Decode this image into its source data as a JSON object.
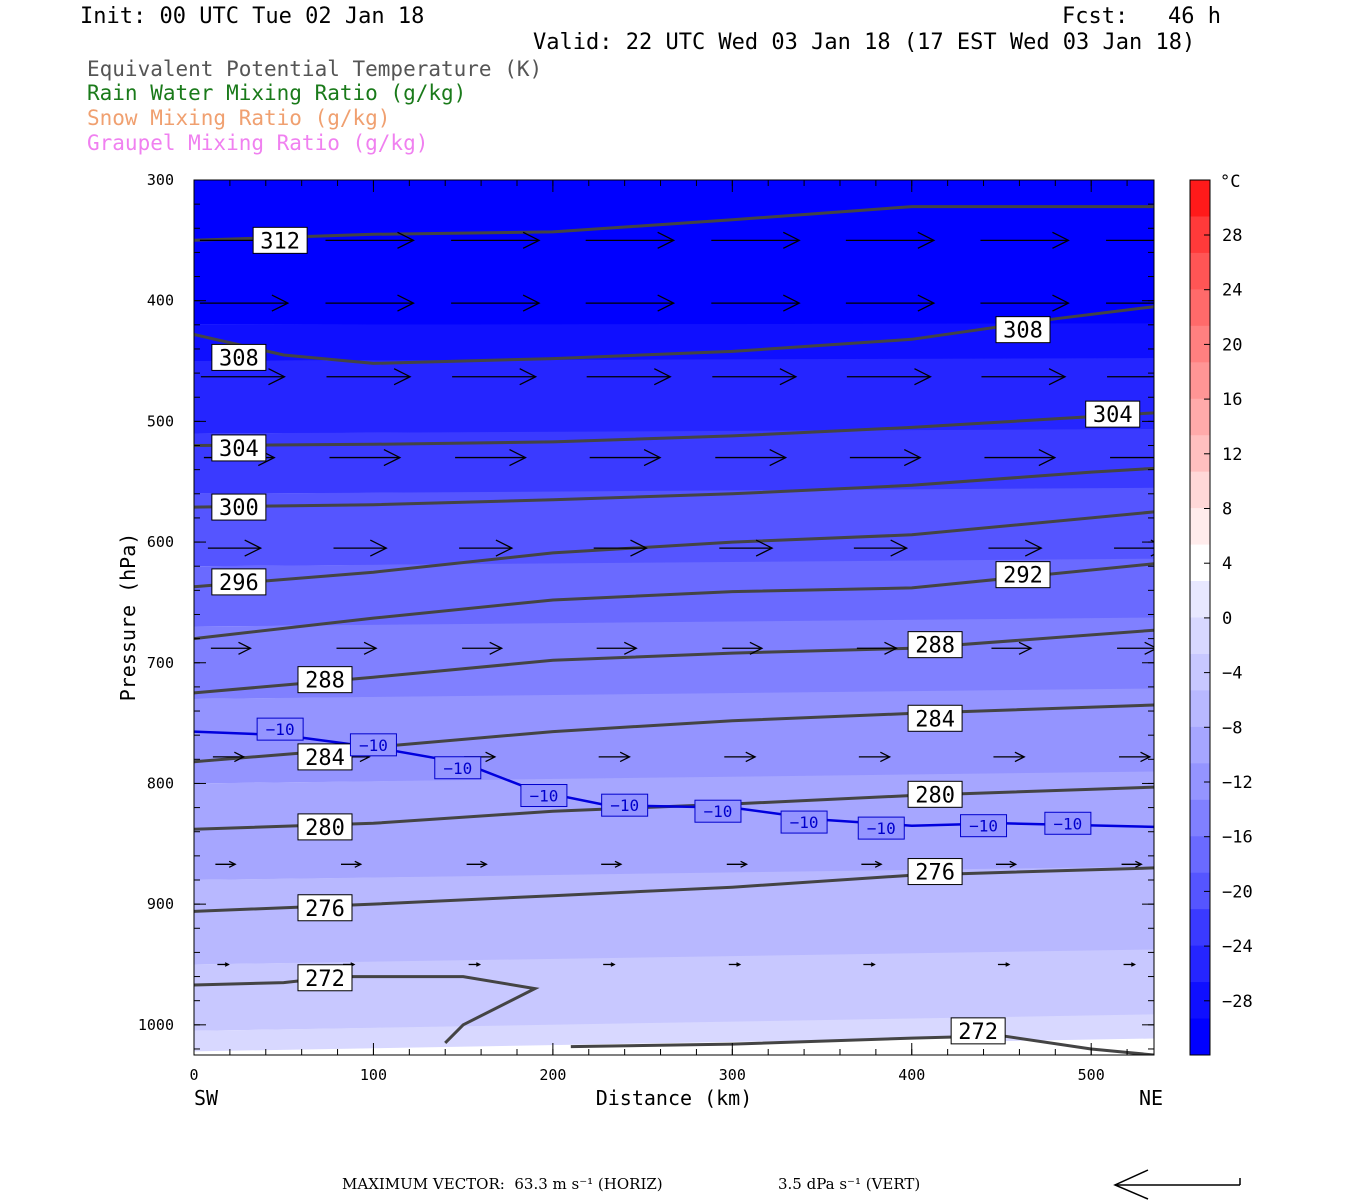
{
  "header": {
    "init": "Init: 00 UTC Tue 02 Jan 18",
    "fcst_label": "Fcst:",
    "fcst_value": "46 h",
    "valid": "Valid: 22 UTC Wed 03 Jan 18 (17 EST Wed 03 Jan 18)"
  },
  "legend": [
    {
      "text": "Equivalent Potential Temperature (K)",
      "color": "#555555"
    },
    {
      "text": "Rain Water Mixing Ratio (g/kg)",
      "color": "#1a7a1a"
    },
    {
      "text": "Snow Mixing Ratio (g/kg)",
      "color": "#f0a070"
    },
    {
      "text": "Graupel Mixing Ratio (g/kg)",
      "color": "#f080f0"
    }
  ],
  "chart_data": {
    "type": "contour_cross_section",
    "xlabel": "Distance (km)",
    "ylabel": "Pressure (hPa)",
    "xlim": [
      0,
      535
    ],
    "ylim": [
      1025,
      300
    ],
    "x_ticks": [
      "0",
      "100",
      "200",
      "300",
      "400",
      "500"
    ],
    "y_ticks": [
      "300",
      "400",
      "500",
      "600",
      "700",
      "800",
      "900",
      "1000"
    ],
    "left_end": "SW",
    "right_end": "NE",
    "colorbar": {
      "unit": "°C",
      "labels": [
        "28",
        "24",
        "20",
        "16",
        "12",
        "8",
        "4",
        "0",
        "−4",
        "−8",
        "−12",
        "−16",
        "−20",
        "−24",
        "−28"
      ],
      "colors": [
        "#ff1a1a",
        "#ff3a3a",
        "#ff5555",
        "#ff6a6a",
        "#ff8080",
        "#ff9595",
        "#ffaaaa",
        "#ffbfbf",
        "#ffd8d8",
        "#ffecec",
        "#ffffff",
        "#e8e8ff",
        "#d8d8ff",
        "#c8c8ff",
        "#b8b8ff",
        "#a6a6ff",
        "#9494ff",
        "#8080ff",
        "#6a6aff",
        "#5555ff",
        "#3a3aff",
        "#2525ff",
        "#0f0fff",
        "#0000ff"
      ]
    },
    "theta_e_contours": [
      {
        "value": 312,
        "label": "312",
        "points": [
          [
            0,
            350
          ],
          [
            100,
            345
          ],
          [
            200,
            343
          ],
          [
            300,
            333
          ],
          [
            400,
            322
          ],
          [
            535,
            322
          ]
        ]
      },
      {
        "value": 308,
        "label": "308",
        "points": [
          [
            0,
            428
          ],
          [
            50,
            445
          ],
          [
            100,
            452
          ],
          [
            200,
            448
          ],
          [
            300,
            442
          ],
          [
            400,
            432
          ],
          [
            480,
            415
          ],
          [
            535,
            405
          ]
        ]
      },
      {
        "value": 304,
        "label": "304",
        "points": [
          [
            0,
            520
          ],
          [
            100,
            519
          ],
          [
            200,
            517
          ],
          [
            300,
            512
          ],
          [
            400,
            505
          ],
          [
            535,
            493
          ]
        ]
      },
      {
        "value": 300,
        "label": "300",
        "points": [
          [
            0,
            571
          ],
          [
            100,
            569
          ],
          [
            200,
            565
          ],
          [
            300,
            560
          ],
          [
            400,
            553
          ],
          [
            500,
            542
          ],
          [
            535,
            539
          ]
        ]
      },
      {
        "value": 296,
        "label": "296",
        "points": [
          [
            0,
            637
          ],
          [
            100,
            625
          ],
          [
            200,
            609
          ],
          [
            300,
            600
          ],
          [
            400,
            594
          ],
          [
            535,
            575
          ]
        ]
      },
      {
        "value": 292,
        "label": "292",
        "points": [
          [
            0,
            680
          ],
          [
            100,
            663
          ],
          [
            200,
            648
          ],
          [
            300,
            641
          ],
          [
            400,
            638
          ],
          [
            535,
            618
          ]
        ]
      },
      {
        "value": 288,
        "label": "288",
        "points": [
          [
            0,
            725
          ],
          [
            100,
            712
          ],
          [
            200,
            698
          ],
          [
            300,
            692
          ],
          [
            400,
            688
          ],
          [
            535,
            673
          ]
        ]
      },
      {
        "value": 284,
        "label": "284",
        "points": [
          [
            0,
            782
          ],
          [
            100,
            770
          ],
          [
            200,
            757
          ],
          [
            300,
            748
          ],
          [
            400,
            742
          ],
          [
            535,
            735
          ]
        ]
      },
      {
        "value": 280,
        "label": "280",
        "points": [
          [
            0,
            838
          ],
          [
            100,
            833
          ],
          [
            200,
            823
          ],
          [
            300,
            817
          ],
          [
            400,
            810
          ],
          [
            535,
            803
          ]
        ]
      },
      {
        "value": 276,
        "label": "276",
        "points": [
          [
            0,
            906
          ],
          [
            100,
            900
          ],
          [
            200,
            893
          ],
          [
            300,
            886
          ],
          [
            400,
            876
          ],
          [
            535,
            870
          ]
        ]
      },
      {
        "value": 272,
        "label": "272",
        "points": [
          [
            0,
            967
          ],
          [
            50,
            965
          ],
          [
            80,
            960
          ],
          [
            150,
            960
          ],
          [
            190,
            970
          ],
          [
            150,
            1000
          ],
          [
            140,
            1015
          ]
        ]
      },
      {
        "value": 272,
        "label": "272",
        "points": [
          [
            210,
            1018
          ],
          [
            300,
            1016
          ],
          [
            400,
            1011
          ],
          [
            450,
            1009
          ],
          [
            500,
            1020
          ],
          [
            535,
            1025
          ]
        ]
      }
    ],
    "theta_e_labels": [
      {
        "text": "312",
        "x": 48,
        "p": 350
      },
      {
        "text": "308",
        "x": 25,
        "p": 447
      },
      {
        "text": "308",
        "x": 462,
        "p": 424
      },
      {
        "text": "304",
        "x": 25,
        "p": 522
      },
      {
        "text": "304",
        "x": 512,
        "p": 494
      },
      {
        "text": "300",
        "x": 25,
        "p": 571
      },
      {
        "text": "296",
        "x": 25,
        "p": 633
      },
      {
        "text": "292",
        "x": 462,
        "p": 627
      },
      {
        "text": "288",
        "x": 73,
        "p": 714
      },
      {
        "text": "288",
        "x": 413,
        "p": 685
      },
      {
        "text": "284",
        "x": 73,
        "p": 778
      },
      {
        "text": "284",
        "x": 413,
        "p": 746
      },
      {
        "text": "280",
        "x": 73,
        "p": 836
      },
      {
        "text": "280",
        "x": 413,
        "p": 809
      },
      {
        "text": "276",
        "x": 73,
        "p": 903
      },
      {
        "text": "276",
        "x": 413,
        "p": 873
      },
      {
        "text": "272",
        "x": 73,
        "p": 961
      },
      {
        "text": "272",
        "x": 437,
        "p": 1005
      }
    ],
    "isotherm_minus10": {
      "points": [
        [
          0,
          757
        ],
        [
          50,
          760
        ],
        [
          100,
          770
        ],
        [
          150,
          783
        ],
        [
          190,
          806
        ],
        [
          230,
          818
        ],
        [
          300,
          820
        ],
        [
          350,
          830
        ],
        [
          400,
          835
        ],
        [
          450,
          833
        ],
        [
          535,
          836
        ]
      ],
      "labels": [
        {
          "text": "−10",
          "x": 48,
          "p": 755
        },
        {
          "text": "−10",
          "x": 100,
          "p": 768
        },
        {
          "text": "−10",
          "x": 147,
          "p": 787
        },
        {
          "text": "−10",
          "x": 195,
          "p": 810
        },
        {
          "text": "−10",
          "x": 240,
          "p": 818
        },
        {
          "text": "−10",
          "x": 292,
          "p": 823
        },
        {
          "text": "−10",
          "x": 340,
          "p": 832
        },
        {
          "text": "−10",
          "x": 383,
          "p": 837
        },
        {
          "text": "−10",
          "x": 440,
          "p": 835
        },
        {
          "text": "−10",
          "x": 487,
          "p": 833
        }
      ]
    },
    "wind_rows": [
      {
        "p": 350,
        "len": 40
      },
      {
        "p": 402,
        "len": 40
      },
      {
        "p": 463,
        "len": 38
      },
      {
        "p": 530,
        "len": 32
      },
      {
        "p": 605,
        "len": 24
      },
      {
        "p": 688,
        "len": 18
      },
      {
        "p": 778,
        "len": 14
      },
      {
        "p": 867,
        "len": 9
      },
      {
        "p": 950,
        "len": 5
      }
    ],
    "wind_x": [
      20,
      90,
      160,
      235,
      305,
      380,
      455,
      525
    ]
  },
  "footer": {
    "max_vector": "MAXIMUM VECTOR:  63.3 m s⁻¹ (HORIZ)",
    "vert": "3.5 dPa s⁻¹ (VERT)"
  }
}
